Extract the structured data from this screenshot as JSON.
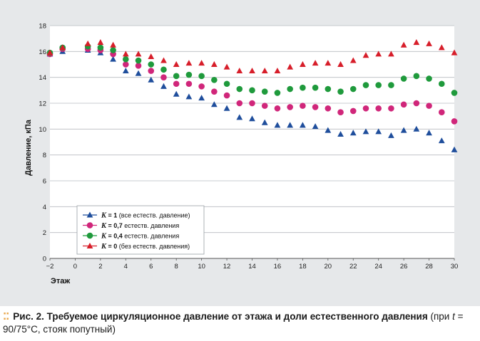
{
  "caption": {
    "label": "Рис. 2.",
    "title": "Требуемое циркуляционное давление от этажа и доли естественного давления",
    "paren_open": " (при",
    "t_var": "t",
    "rest": " = 90/75°С, стояк попутный)"
  },
  "chart_data": {
    "type": "scatter",
    "xlabel": "Этаж",
    "ylabel": "Давление, кПа",
    "xlim": [
      -2,
      30
    ],
    "ylim": [
      0,
      18
    ],
    "xticks": [
      -2,
      0,
      2,
      4,
      6,
      8,
      10,
      12,
      14,
      16,
      18,
      20,
      22,
      24,
      26,
      28,
      30
    ],
    "xtick_labels": [
      "−2",
      "0",
      "2",
      "4",
      "6",
      "8",
      "10",
      "12",
      "14",
      "16",
      "18",
      "20",
      "22",
      "24",
      "26",
      "28",
      "30"
    ],
    "yticks": [
      0,
      2,
      4,
      6,
      8,
      10,
      12,
      14,
      16,
      18
    ],
    "ytick_labels": [
      "0",
      "2",
      "4",
      "6",
      "8",
      "10",
      "12",
      "14",
      "16",
      "18"
    ],
    "grid": "horizontal",
    "legend_position": "bottom-left",
    "x": [
      -2,
      -1,
      1,
      2,
      3,
      4,
      5,
      6,
      7,
      8,
      9,
      10,
      11,
      12,
      13,
      14,
      15,
      16,
      17,
      18,
      19,
      20,
      21,
      22,
      23,
      24,
      25,
      26,
      27,
      28,
      29,
      30
    ],
    "series": [
      {
        "legend_k": "K",
        "legend_value": " = 1",
        "legend_note": " (все естеств. давление)",
        "marker": "triangle",
        "color": "#1f4e9c",
        "values": [
          15.8,
          16.0,
          16.1,
          15.9,
          15.4,
          14.5,
          14.3,
          13.8,
          13.3,
          12.7,
          12.5,
          12.4,
          11.9,
          11.6,
          10.9,
          10.8,
          10.5,
          10.3,
          10.3,
          10.3,
          10.2,
          9.9,
          9.6,
          9.7,
          9.8,
          9.8,
          9.5,
          9.9,
          10.0,
          9.7,
          9.1,
          8.4
        ]
      },
      {
        "legend_k": "K",
        "legend_value": " = 0,7",
        "legend_note": " естеств. давления",
        "marker": "circle",
        "color": "#d0267a",
        "values": [
          15.8,
          16.2,
          16.2,
          16.1,
          15.8,
          15.0,
          14.9,
          14.5,
          14.0,
          13.5,
          13.5,
          13.3,
          12.9,
          12.6,
          12.0,
          12.0,
          11.8,
          11.6,
          11.7,
          11.8,
          11.7,
          11.6,
          11.3,
          11.4,
          11.6,
          11.6,
          11.6,
          11.9,
          12.0,
          11.8,
          11.3,
          10.6
        ]
      },
      {
        "legend_k": "K",
        "legend_value": " = 0,4",
        "legend_note": " естеств. давления",
        "marker": "circle",
        "color": "#1f9a3c",
        "values": [
          15.9,
          16.3,
          16.4,
          16.3,
          16.1,
          15.4,
          15.3,
          15.0,
          14.6,
          14.1,
          14.2,
          14.1,
          13.8,
          13.5,
          13.1,
          13.0,
          12.9,
          12.8,
          13.1,
          13.2,
          13.2,
          13.1,
          12.9,
          13.1,
          13.4,
          13.4,
          13.4,
          13.9,
          14.1,
          13.9,
          13.5,
          12.8
        ]
      },
      {
        "legend_k": "K",
        "legend_value": " = 0",
        "legend_note": " (без естеств. давления)",
        "marker": "triangle",
        "color": "#d71e2a",
        "values": [
          15.9,
          16.3,
          16.6,
          16.7,
          16.5,
          15.8,
          15.8,
          15.6,
          15.3,
          15.0,
          15.1,
          15.1,
          15.0,
          14.8,
          14.5,
          14.5,
          14.5,
          14.5,
          14.8,
          15.0,
          15.1,
          15.1,
          15.0,
          15.3,
          15.7,
          15.8,
          15.8,
          16.5,
          16.7,
          16.6,
          16.3,
          15.9
        ]
      }
    ]
  }
}
